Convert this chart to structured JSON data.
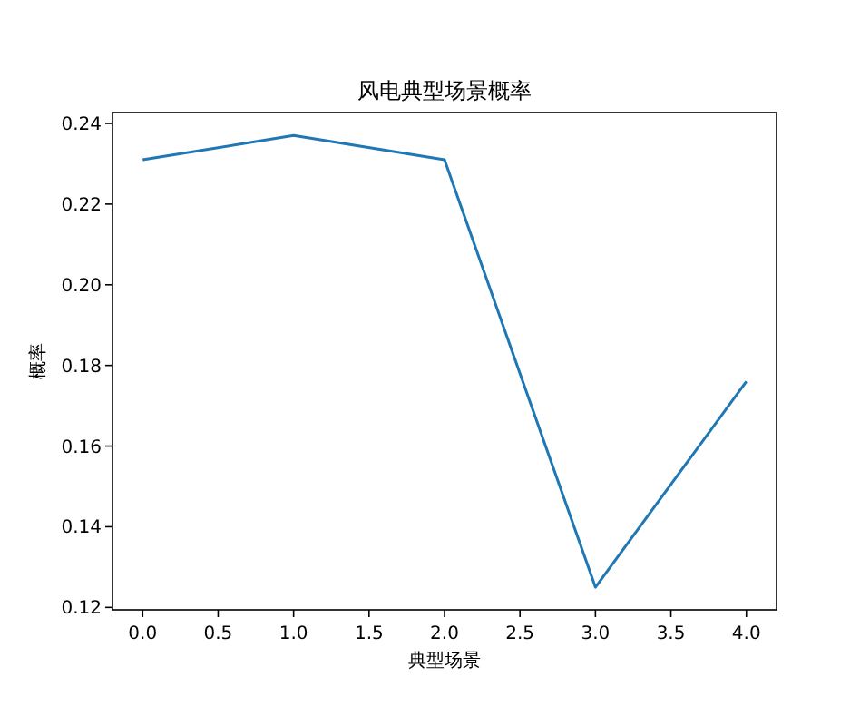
{
  "chart_data": {
    "type": "line",
    "title": "风电典型场景概率",
    "xlabel": "典型场景",
    "ylabel": "概率",
    "x": [
      0,
      1,
      2,
      3,
      4
    ],
    "series": [
      {
        "color": "#1f77b4",
        "values": [
          0.231,
          0.237,
          0.231,
          0.125,
          0.176
        ]
      }
    ],
    "xlim": [
      -0.2,
      4.2
    ],
    "ylim": [
      0.1194,
      0.2427
    ],
    "xticks": [
      {
        "value": 0,
        "label": "0.0"
      },
      {
        "value": 0.5,
        "label": "0.5"
      },
      {
        "value": 1,
        "label": "1.0"
      },
      {
        "value": 1.5,
        "label": "1.5"
      },
      {
        "value": 2,
        "label": "2.0"
      },
      {
        "value": 2.5,
        "label": "2.5"
      },
      {
        "value": 3,
        "label": "3.0"
      },
      {
        "value": 3.5,
        "label": "3.5"
      },
      {
        "value": 4,
        "label": "4.0"
      }
    ],
    "yticks": [
      0.12,
      0.14,
      0.16,
      0.18,
      {
        "value": 0.2,
        "label": "0.20"
      },
      0.22,
      0.24
    ],
    "grid": false,
    "marker": "none",
    "line_style": "solid"
  }
}
